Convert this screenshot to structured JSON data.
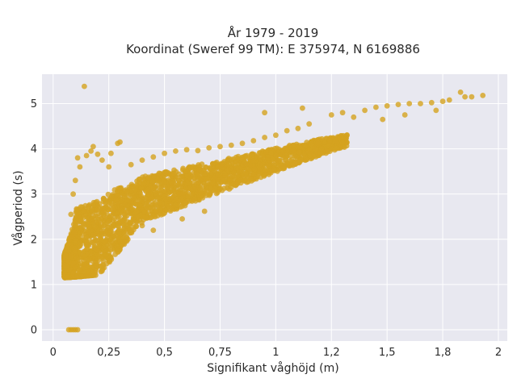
{
  "chart_data": {
    "type": "scatter",
    "title_lines": [
      "År 1979 - 2019",
      "Koordinat (Sweref 99 TM): E 375974, N 6169886"
    ],
    "xlabel": "Signifikant våghöjd (m)",
    "ylabel": "Vågperiod (s)",
    "xlim": [
      -0.05,
      2.04
    ],
    "ylim": [
      -0.25,
      5.65
    ],
    "x_ticks": [
      0,
      0.25,
      0.5,
      0.75,
      1,
      1.25,
      1.5,
      1.75,
      2
    ],
    "x_tick_labels": [
      "0",
      "0,25",
      "0,5",
      "0,75",
      "1",
      "1,2",
      "1,5",
      "1,8",
      "2"
    ],
    "y_ticks": [
      0,
      1,
      2,
      3,
      4,
      5
    ],
    "y_tick_labels": [
      "0",
      "1",
      "2",
      "3",
      "4",
      "5"
    ],
    "grid": true,
    "marker_color": "#D4A31F",
    "plot_background": "#E8E8F0",
    "grid_color": "#FFFFFF",
    "series": [
      {
        "points": [
          [
            0.14,
            5.38
          ],
          [
            0.07,
            0.0
          ],
          [
            0.08,
            0.0
          ],
          [
            0.09,
            0.0
          ],
          [
            0.1,
            0.0
          ],
          [
            0.11,
            0.0
          ],
          [
            0.05,
            1.42
          ],
          [
            0.06,
            1.4
          ],
          [
            0.07,
            1.5
          ],
          [
            0.08,
            1.62
          ],
          [
            0.1,
            1.75
          ],
          [
            0.12,
            1.85
          ],
          [
            0.09,
            1.25
          ],
          [
            0.11,
            1.2
          ],
          [
            0.12,
            1.32
          ],
          [
            0.14,
            1.45
          ],
          [
            0.16,
            1.55
          ],
          [
            0.08,
            2.55
          ],
          [
            0.09,
            3.0
          ],
          [
            0.1,
            3.3
          ],
          [
            0.12,
            3.6
          ],
          [
            0.11,
            3.8
          ],
          [
            0.15,
            3.85
          ],
          [
            0.17,
            3.95
          ],
          [
            0.2,
            3.88
          ],
          [
            0.26,
            3.9
          ],
          [
            0.29,
            4.12
          ],
          [
            0.3,
            4.15
          ],
          [
            0.18,
            4.05
          ],
          [
            0.22,
            3.75
          ],
          [
            0.25,
            3.6
          ],
          [
            0.35,
            3.65
          ],
          [
            0.4,
            3.75
          ],
          [
            0.45,
            3.82
          ],
          [
            0.5,
            3.9
          ],
          [
            0.55,
            3.95
          ],
          [
            0.6,
            3.98
          ],
          [
            0.65,
            3.96
          ],
          [
            0.7,
            4.02
          ],
          [
            0.75,
            4.05
          ],
          [
            0.8,
            4.08
          ],
          [
            0.85,
            4.12
          ],
          [
            0.9,
            4.18
          ],
          [
            0.95,
            4.25
          ],
          [
            1.0,
            4.3
          ],
          [
            1.05,
            4.4
          ],
          [
            1.1,
            4.45
          ],
          [
            1.15,
            4.55
          ],
          [
            0.95,
            4.8
          ],
          [
            1.12,
            4.9
          ],
          [
            1.25,
            4.75
          ],
          [
            1.3,
            4.8
          ],
          [
            1.35,
            4.7
          ],
          [
            1.4,
            4.85
          ],
          [
            1.45,
            4.92
          ],
          [
            1.5,
            4.95
          ],
          [
            1.55,
            4.98
          ],
          [
            1.6,
            5.0
          ],
          [
            1.65,
            5.0
          ],
          [
            1.7,
            5.02
          ],
          [
            1.75,
            5.05
          ],
          [
            1.78,
            5.08
          ],
          [
            1.83,
            5.25
          ],
          [
            1.85,
            5.15
          ],
          [
            1.88,
            5.15
          ],
          [
            1.93,
            5.18
          ],
          [
            1.72,
            4.85
          ],
          [
            1.58,
            4.75
          ],
          [
            1.48,
            4.65
          ],
          [
            0.68,
            2.62
          ],
          [
            0.58,
            2.45
          ],
          [
            0.45,
            2.2
          ],
          [
            0.4,
            2.3
          ],
          [
            0.3,
            1.95
          ],
          [
            0.33,
            2.05
          ],
          [
            0.2,
            1.65
          ],
          [
            0.22,
            1.58
          ],
          [
            0.25,
            1.7
          ]
        ]
      }
    ]
  }
}
